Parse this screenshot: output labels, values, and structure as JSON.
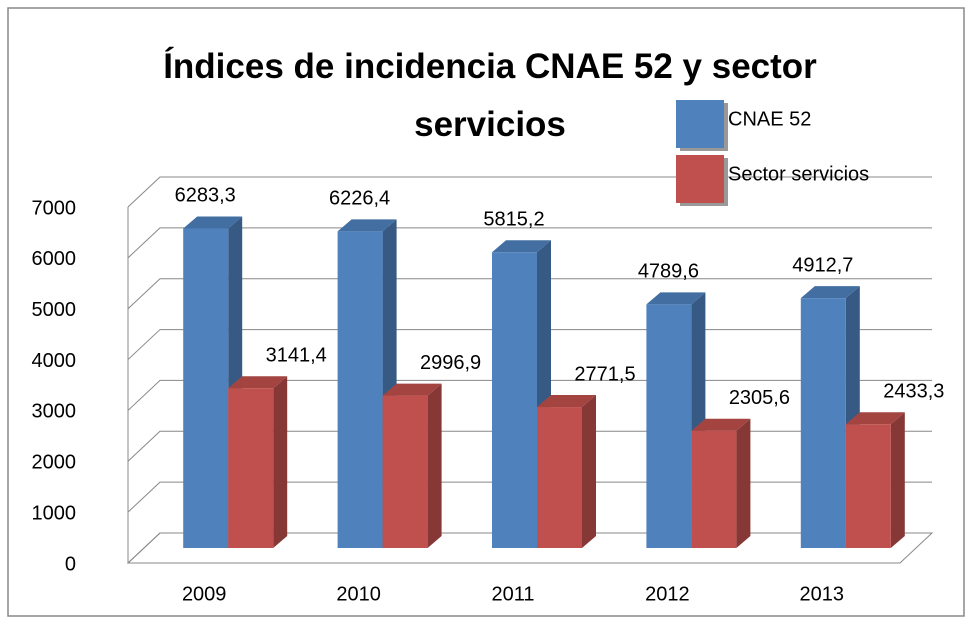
{
  "chart_data": {
    "type": "bar3d",
    "title": "Índices de incidencia CNAE 52 y sector servicios",
    "categories": [
      "2009",
      "2010",
      "2011",
      "2012",
      "2013"
    ],
    "series": [
      {
        "name": "CNAE 52",
        "color": "#4f81bd",
        "values": [
          6283.3,
          6226.4,
          5815.2,
          4789.6,
          4912.7
        ],
        "value_labels": [
          "6283,3",
          "6226,4",
          "5815,2",
          "4789,6",
          "4912,7"
        ]
      },
      {
        "name": "Sector servicios",
        "color": "#c0504d",
        "values": [
          3141.4,
          2996.9,
          2771.5,
          2305.6,
          2433.3
        ],
        "value_labels": [
          "3141,4",
          "2996,9",
          "2771,5",
          "2305,6",
          "2433,3"
        ]
      }
    ],
    "ylim": [
      0,
      7000
    ],
    "yticks": [
      0,
      1000,
      2000,
      3000,
      4000,
      5000,
      6000,
      7000
    ],
    "grid": true,
    "legend": "top-right"
  }
}
